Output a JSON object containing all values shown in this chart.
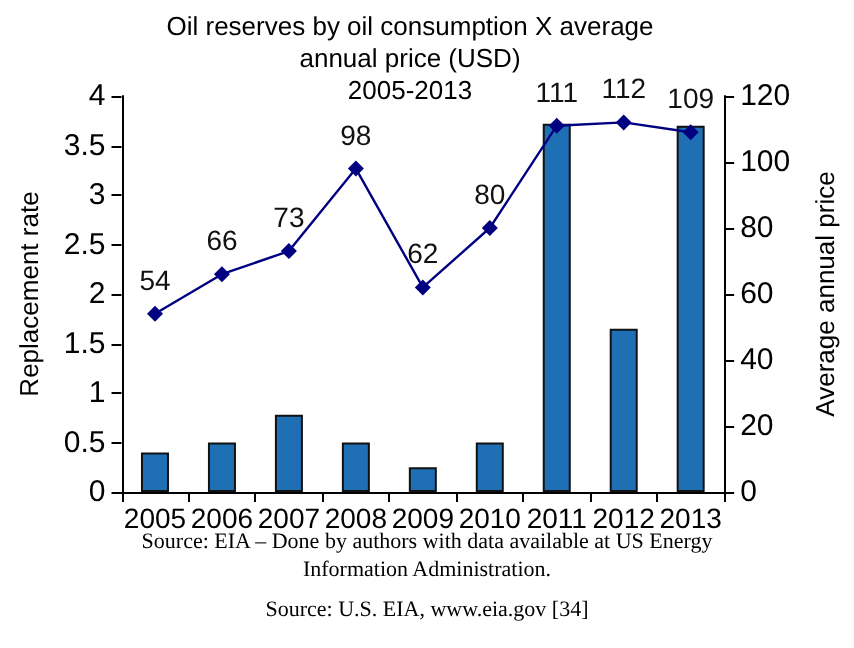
{
  "chart_data": {
    "type": "bar",
    "title": "Oil reserves by oil consumption X average\nannual price (USD)\n2005-2013",
    "categories": [
      "2005",
      "2006",
      "2007",
      "2008",
      "2009",
      "2010",
      "2011",
      "2012",
      "2013"
    ],
    "series": [
      {
        "color": "#1f6fb5",
        "values": [
          0.4,
          0.5,
          0.78,
          0.5,
          0.25,
          0.5,
          3.72,
          1.65,
          3.7
        ]
      },
      {
        "type": "line",
        "axis": "y2",
        "color": "#000080",
        "marker": "diamond",
        "values": [
          54,
          66,
          73,
          98,
          62,
          80,
          111,
          112,
          109
        ],
        "value_labels": [
          "54",
          "66",
          "73",
          "98",
          "62",
          "80",
          "111",
          "112",
          "109"
        ]
      }
    ],
    "ylabel": "Replacement rate",
    "y2label": "Average annual price",
    "ylim": [
      0,
      4
    ],
    "yticks": [
      0,
      0.5,
      1,
      1.5,
      2,
      2.5,
      3,
      3.5,
      4
    ],
    "y2lim": [
      0,
      120
    ],
    "y2ticks": [
      0,
      20,
      40,
      60,
      80,
      100,
      120
    ],
    "grid": false,
    "annotations": [
      "Source: EIA – Done by authors with data available at US Energy\nInformation Administration.",
      "Source: U.S. EIA, www.eia.gov [34]"
    ]
  }
}
